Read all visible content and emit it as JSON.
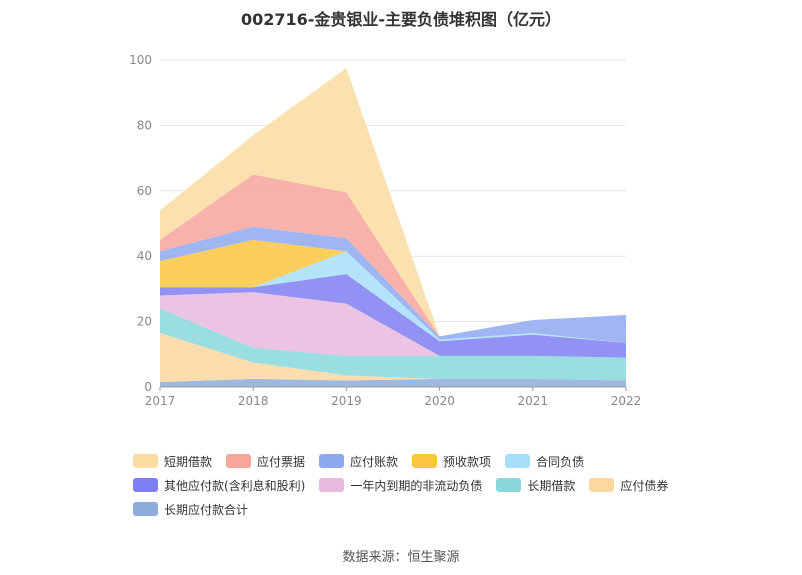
{
  "title": "002716-金贵银业-主要负债堆积图（亿元）",
  "source": "数据来源：恒生聚源",
  "chart_data": {
    "type": "area",
    "stacked": true,
    "x": [
      "2017",
      "2018",
      "2019",
      "2020",
      "2021",
      "2022"
    ],
    "ylim": [
      0,
      100
    ],
    "yticks": [
      0,
      20,
      40,
      60,
      80,
      100
    ],
    "grid": true,
    "legend_position": "bottom",
    "series": [
      {
        "name": "长期应付款合计",
        "color": "#8EACDA",
        "values": [
          1.5,
          2.5,
          2.0,
          2.5,
          2.5,
          2.0
        ]
      },
      {
        "name": "应付债券",
        "color": "#FDD7A0",
        "values": [
          15.0,
          5.0,
          1.5,
          0,
          0,
          0
        ]
      },
      {
        "name": "长期借款",
        "color": "#88D8DC",
        "values": [
          7.5,
          4.5,
          6.0,
          7.0,
          7.0,
          7.0
        ]
      },
      {
        "name": "一年内到期的非流动负债",
        "color": "#E8B8DE",
        "values": [
          4.0,
          17.0,
          16.0,
          0,
          0,
          0
        ]
      },
      {
        "name": "其他应付款(含利息和股利)",
        "color": "#7F7EF2",
        "values": [
          2.5,
          1.5,
          9.0,
          4.5,
          6.5,
          4.5
        ]
      },
      {
        "name": "合同负债",
        "color": "#A7DFF8",
        "values": [
          0,
          0,
          7.0,
          0.5,
          0.5,
          0
        ]
      },
      {
        "name": "预收款项",
        "color": "#FAC642",
        "values": [
          8.0,
          14.5,
          0,
          0,
          0,
          0
        ]
      },
      {
        "name": "应付账款",
        "color": "#8FA9F0",
        "values": [
          3.0,
          4.0,
          4.0,
          1.0,
          4.0,
          8.5
        ]
      },
      {
        "name": "应付票据",
        "color": "#F8A59C",
        "values": [
          3.5,
          16.0,
          14.0,
          0,
          0,
          0
        ]
      },
      {
        "name": "短期借款",
        "color": "#FCDCA2",
        "values": [
          9.0,
          12.0,
          38.0,
          0,
          0,
          0
        ]
      }
    ]
  },
  "legend": [
    [
      {
        "name": "短期借款",
        "color": "#FCDCA2"
      },
      {
        "name": "应付票据",
        "color": "#F8A59C"
      },
      {
        "name": "应付账款",
        "color": "#8FA9F0"
      },
      {
        "name": "预收款项",
        "color": "#FAC642"
      },
      {
        "name": "合同负债",
        "color": "#A7DFF8"
      }
    ],
    [
      {
        "name": "其他应付款(含利息和股利)",
        "color": "#7F7EF2"
      },
      {
        "name": "一年内到期的非流动负债",
        "color": "#E8B8DE"
      },
      {
        "name": "长期借款",
        "color": "#88D8DC"
      },
      {
        "name": "应付债券",
        "color": "#FDD7A0"
      }
    ],
    [
      {
        "name": "长期应付款合计",
        "color": "#8EACDA"
      }
    ]
  ]
}
